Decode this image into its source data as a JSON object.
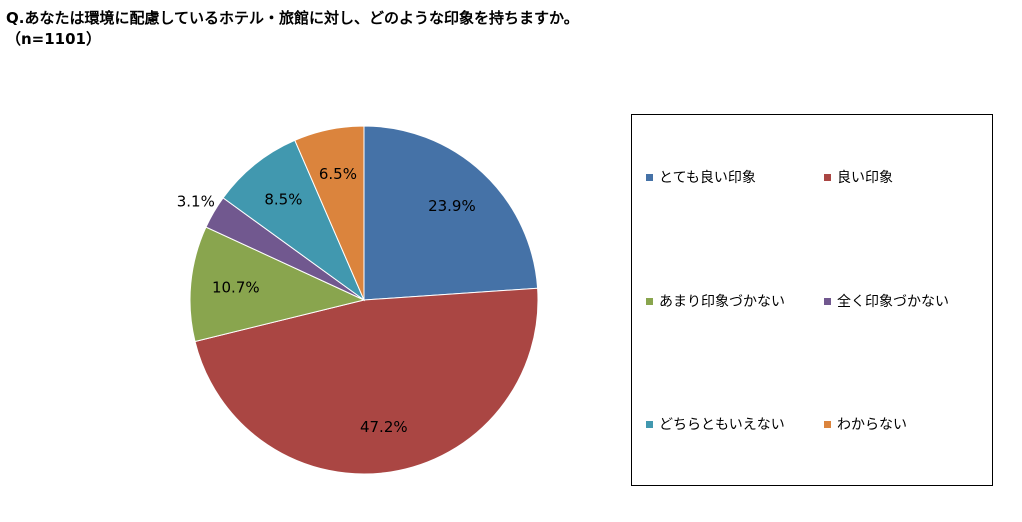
{
  "title": "Q.あなたは環境に配慮しているホテル・旅館に対し、どのような印象を持ちますか。",
  "subtitle": "（n=1101）",
  "chart_data": {
    "type": "pie",
    "categories": [
      "とても良い印象",
      "良い印象",
      "あまり印象づかない",
      "全く印象づかない",
      "どちらともいえない",
      "わからない"
    ],
    "values": [
      23.9,
      47.2,
      10.7,
      3.1,
      8.5,
      6.5
    ],
    "labels": [
      "23.9%",
      "47.2%",
      "10.7%",
      "3.1%",
      "8.5%",
      "6.5%"
    ],
    "colors": [
      "#4572A7",
      "#AA4643",
      "#89A54E",
      "#71588F",
      "#4198AF",
      "#DB843D"
    ],
    "unit": "%",
    "start": "12 o'clock, clockwise",
    "legend_position": "right"
  }
}
